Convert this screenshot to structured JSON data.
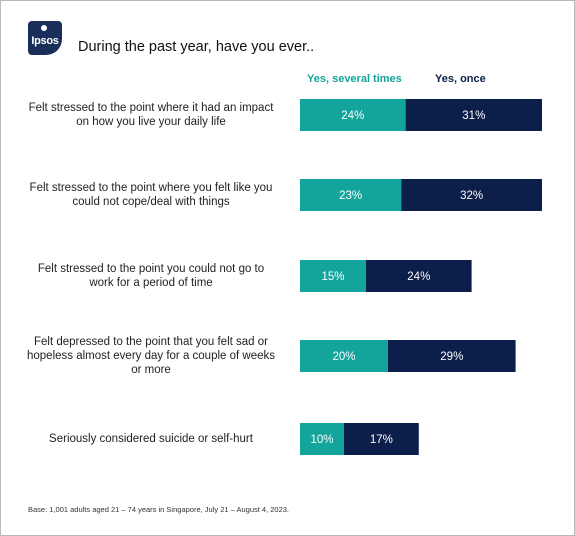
{
  "title": "During the past year, have you ever..",
  "logo_text": "Ipsos",
  "footnote": "Base: 1,001 adults aged 21 – 74 years in Singapore, July 21 – August 4, 2023.",
  "colors": {
    "several": "#13a59b",
    "once": "#0c1f4a"
  },
  "chart_data": {
    "type": "bar",
    "orientation": "horizontal",
    "stacked": true,
    "categories": [
      "Felt stressed to the point where it had an impact on how you live your daily life",
      "Felt stressed to the point where you felt like you could not cope/deal with things",
      "Felt stressed to the point you could not go to work for a period of time",
      "Felt depressed to the point that you felt sad or hopeless almost every day for a couple of weeks or more",
      "Seriously considered suicide or self-hurt"
    ],
    "category_lines": [
      [
        "Felt stressed to the point where it had an impact",
        "on how you live your daily life"
      ],
      [
        "Felt stressed to the point where you felt like you",
        "could not cope/deal with things"
      ],
      [
        "Felt stressed to the point you could not go to",
        "work for a period of time"
      ],
      [
        "Felt depressed to the point that you felt sad or",
        "hopeless almost every day for a couple of weeks",
        "or more"
      ],
      [
        "Seriously considered suicide or self-hurt"
      ]
    ],
    "series": [
      {
        "name": "Yes, several times",
        "values": [
          24,
          23,
          15,
          20,
          10
        ],
        "labels": [
          "24%",
          "23%",
          "15%",
          "20%",
          "10%"
        ]
      },
      {
        "name": "Yes, once",
        "values": [
          31,
          32,
          24,
          29,
          17
        ],
        "labels": [
          "31%",
          "32%",
          "24%",
          "29%",
          "17%"
        ]
      }
    ],
    "legend_position": "top",
    "grid": false
  }
}
